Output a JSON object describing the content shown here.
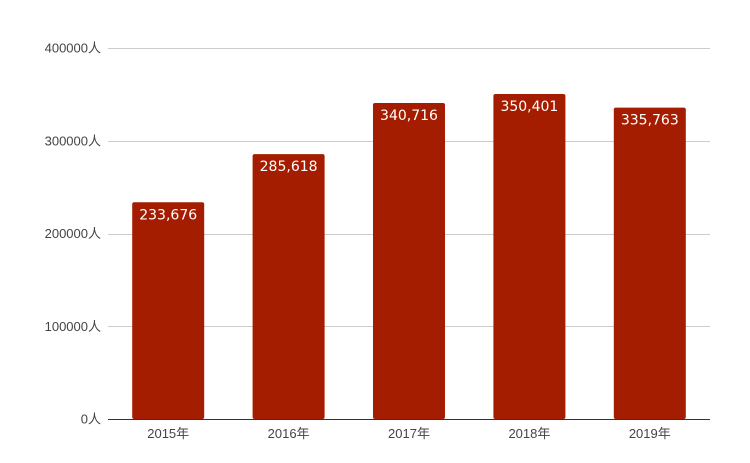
{
  "chart_data": {
    "type": "bar",
    "title": "",
    "xlabel": "",
    "ylabel": "",
    "categories": [
      "2015年",
      "2016年",
      "2017年",
      "2018年",
      "2019年"
    ],
    "values": [
      233676,
      285618,
      340716,
      350401,
      335763
    ],
    "data_labels": [
      "233,676",
      "285,618",
      "340,716",
      "350,401",
      "335,763"
    ],
    "ylim": [
      0,
      400000
    ],
    "yticks": [
      0,
      100000,
      200000,
      300000,
      400000
    ],
    "ytick_labels": [
      "0人",
      "100000人",
      "200000人",
      "300000人",
      "400000人"
    ],
    "grid": true,
    "legend": "none",
    "bar_color": "#a51d00",
    "gridline_color": "#cccccc"
  }
}
